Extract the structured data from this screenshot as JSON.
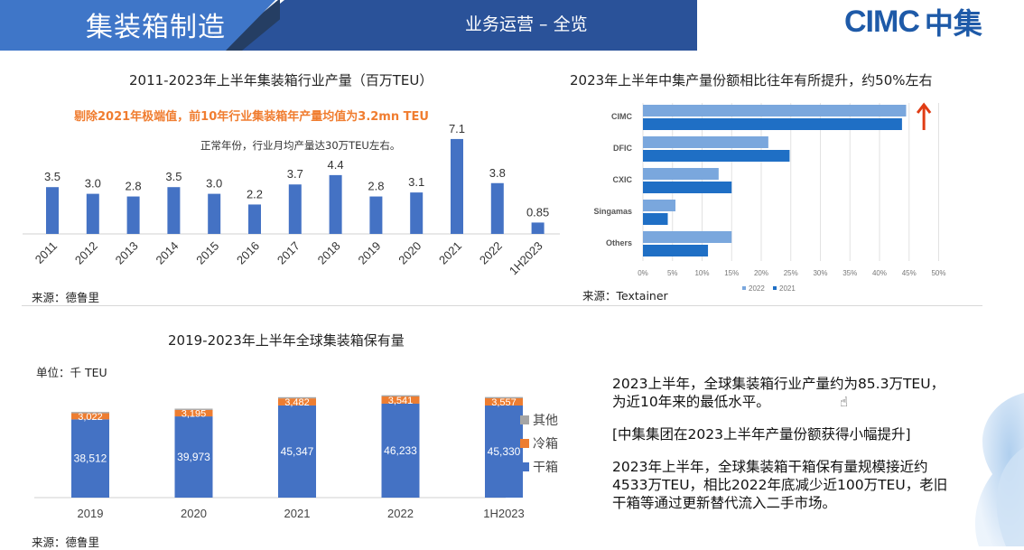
{
  "header": {
    "title": "集装箱制造",
    "subtitle": "业务运营 – 全览",
    "logo_text_en": "CIMC",
    "logo_text_cn": "中集"
  },
  "colors": {
    "header_blue": "#3f76c8",
    "header_dark": "#2a5299",
    "bar_blue": "#4472c4",
    "orange": "#ed7d31",
    "gray": "#a5a5a5",
    "light_blue": "#7aa7dd",
    "dark_blue": "#1f6fc5",
    "arrow_red": "#e03c14"
  },
  "chart_data": [
    {
      "type": "bar",
      "title": "2011-2023年上半年集装箱行业产量（百万TEU）",
      "annotation_orange": "剔除2021年极端值，前10年行业集装箱年产量均值为3.2mn TEU",
      "annotation_note": "正常年份，行业月均产量达30万TEU左右。",
      "categories": [
        "2011",
        "2012",
        "2013",
        "2014",
        "2015",
        "2016",
        "2017",
        "2018",
        "2019",
        "2020",
        "2021",
        "2022",
        "1H2023"
      ],
      "values": [
        3.5,
        3.0,
        2.8,
        3.5,
        3.0,
        2.2,
        3.7,
        4.4,
        2.8,
        3.1,
        7.1,
        3.8,
        0.85
      ],
      "labels": [
        "3.5",
        "3.0",
        "2.8",
        "3.5",
        "3.0",
        "2.2",
        "3.7",
        "4.4",
        "2.8",
        "3.1",
        "7.1",
        "3.8",
        "0.85"
      ],
      "xlabel": "",
      "ylabel": "",
      "ylim": [
        0,
        8
      ],
      "source": "来源：德鲁里"
    },
    {
      "type": "bar",
      "orientation": "horizontal",
      "title": "2023年上半年中集产量份额相比往年有所提升，约50%左右",
      "categories": [
        "CIMC",
        "DFIC",
        "CXIC",
        "Singamas",
        "Others"
      ],
      "series": [
        {
          "name": "2022",
          "values": [
            44.5,
            21.2,
            12.8,
            5.5,
            15.0
          ]
        },
        {
          "name": "2021",
          "values": [
            43.8,
            24.8,
            15.0,
            4.2,
            11.0
          ]
        }
      ],
      "xticks": [
        "0%",
        "5%",
        "10%",
        "15%",
        "20%",
        "25%",
        "30%",
        "35%",
        "40%",
        "45%",
        "50%"
      ],
      "xlim": [
        0,
        50
      ],
      "grid": true,
      "legend": "bottom",
      "arrow_icon": "up-arrow-icon",
      "source": "来源：Textainer"
    },
    {
      "type": "bar",
      "stacked": true,
      "title": "2019-2023年上半年全球集装箱保有量",
      "unit": "单位：千 TEU",
      "categories": [
        "2019",
        "2020",
        "2021",
        "2022",
        "1H2023"
      ],
      "series": [
        {
          "name": "干箱",
          "values": [
            38512,
            39973,
            45347,
            46233,
            45330
          ],
          "labels": [
            "38,512",
            "39,973",
            "45,347",
            "46,233",
            "45,330"
          ]
        },
        {
          "name": "冷箱",
          "values": [
            3022,
            3195,
            3482,
            3541,
            3557
          ],
          "labels": [
            "3,022",
            "3,195",
            "3,482",
            "3,541",
            "3,557"
          ]
        },
        {
          "name": "其他",
          "values": [
            600,
            600,
            600,
            600,
            600
          ]
        }
      ],
      "legend_order": [
        "其他",
        "冷箱",
        "干箱"
      ],
      "legend": "right",
      "source": "来源：德鲁里"
    }
  ],
  "summary": {
    "para1": "2023上半年，全球集装箱行业产量约为85.3万TEU，为近10年来的最低水平。",
    "para2": "[中集集团在2023上半年产量份额获得小幅提升]",
    "para3": "2023年上半年，全球集装箱干箱保有量规模接近约4533万TEU，相比2022年底减少近100万TEU，老旧干箱等通过更新替代流入二手市场。"
  }
}
